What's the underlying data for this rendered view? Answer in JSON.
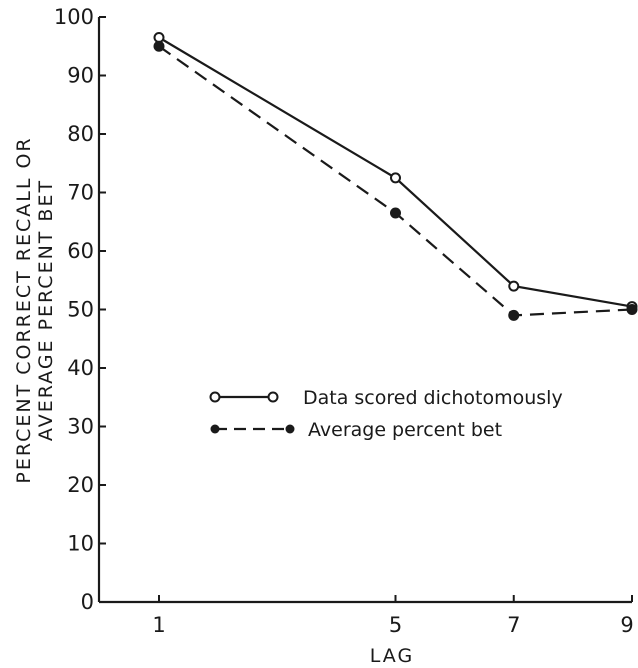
{
  "chart_data": {
    "type": "line",
    "title": "",
    "xlabel": "LAG",
    "ylabel_lines": [
      "PERCENT CORRECT RECALL OR",
      "AVERAGE PERCENT BET"
    ],
    "x": [
      1,
      5,
      7,
      9
    ],
    "x_ticks": [
      "1",
      "5",
      "7",
      "9"
    ],
    "x_range": [
      1,
      9
    ],
    "y_ticks": [
      "0",
      "10",
      "20",
      "30",
      "40",
      "50",
      "60",
      "70",
      "80",
      "90",
      "100"
    ],
    "ylim": [
      0,
      100
    ],
    "grid": false,
    "legend_position": "center",
    "series": [
      {
        "name": "Data scored dichotomously",
        "values": [
          96.5,
          72.5,
          54,
          50.5
        ],
        "marker": "open-circle",
        "line_style": "solid"
      },
      {
        "name": "Average percent bet",
        "values": [
          95,
          66.5,
          49,
          50
        ],
        "marker": "filled-circle",
        "line_style": "dashed"
      }
    ]
  }
}
